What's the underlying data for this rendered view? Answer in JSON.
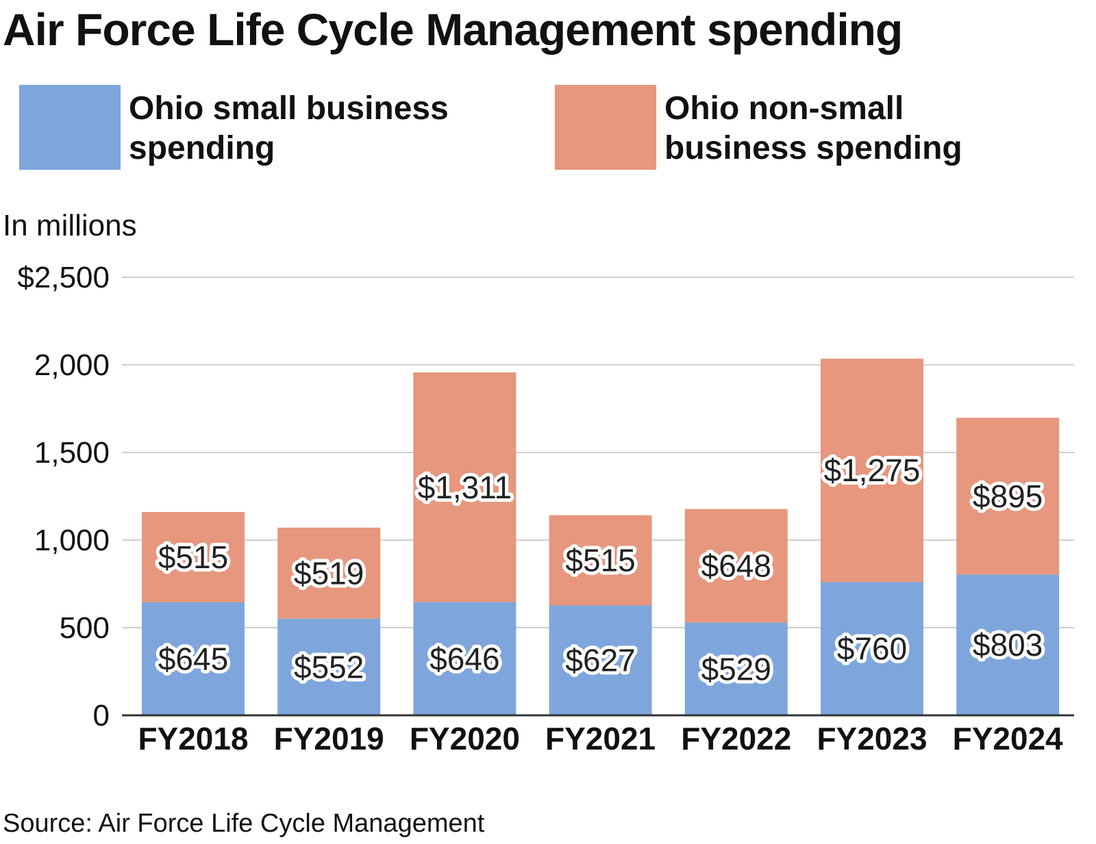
{
  "title": "Air Force Life Cycle Management spending",
  "unit_note": "In millions",
  "source": "Source: Air Force Life Cycle Management",
  "colors": {
    "small": "#7ea6dc",
    "nonsmall": "#e6977e",
    "grid": "#cfcfcf",
    "axis": "#333333"
  },
  "legend": [
    {
      "label": "Ohio small business spending",
      "color": "#7ea6dc"
    },
    {
      "label": "Ohio non-small business spending",
      "color": "#e6977e"
    }
  ],
  "chart_data": {
    "type": "bar",
    "stacked": true,
    "title": "Air Force Life Cycle Management spending",
    "ylabel": "In millions",
    "categories": [
      "FY2018",
      "FY2019",
      "FY2020",
      "FY2021",
      "FY2022",
      "FY2023",
      "FY2024"
    ],
    "series": [
      {
        "name": "Ohio small business spending",
        "values": [
          645,
          552,
          646,
          627,
          529,
          760,
          803
        ],
        "labels": [
          "$645",
          "$552",
          "$646",
          "$627",
          "$529",
          "$760",
          "$803"
        ]
      },
      {
        "name": "Ohio non-small business spending",
        "values": [
          515,
          519,
          1311,
          515,
          648,
          1275,
          895
        ],
        "labels": [
          "$515",
          "$519",
          "$1,311",
          "$515",
          "$648",
          "$1,275",
          "$895"
        ]
      }
    ],
    "yticks": [
      0,
      500,
      1000,
      1500,
      2000,
      2500
    ],
    "ytick_labels": [
      "0",
      "500",
      "1,000",
      "1,500",
      "2,000",
      "$2,500"
    ],
    "ylim": [
      0,
      2500
    ],
    "grid": true,
    "legend_position": "top"
  }
}
